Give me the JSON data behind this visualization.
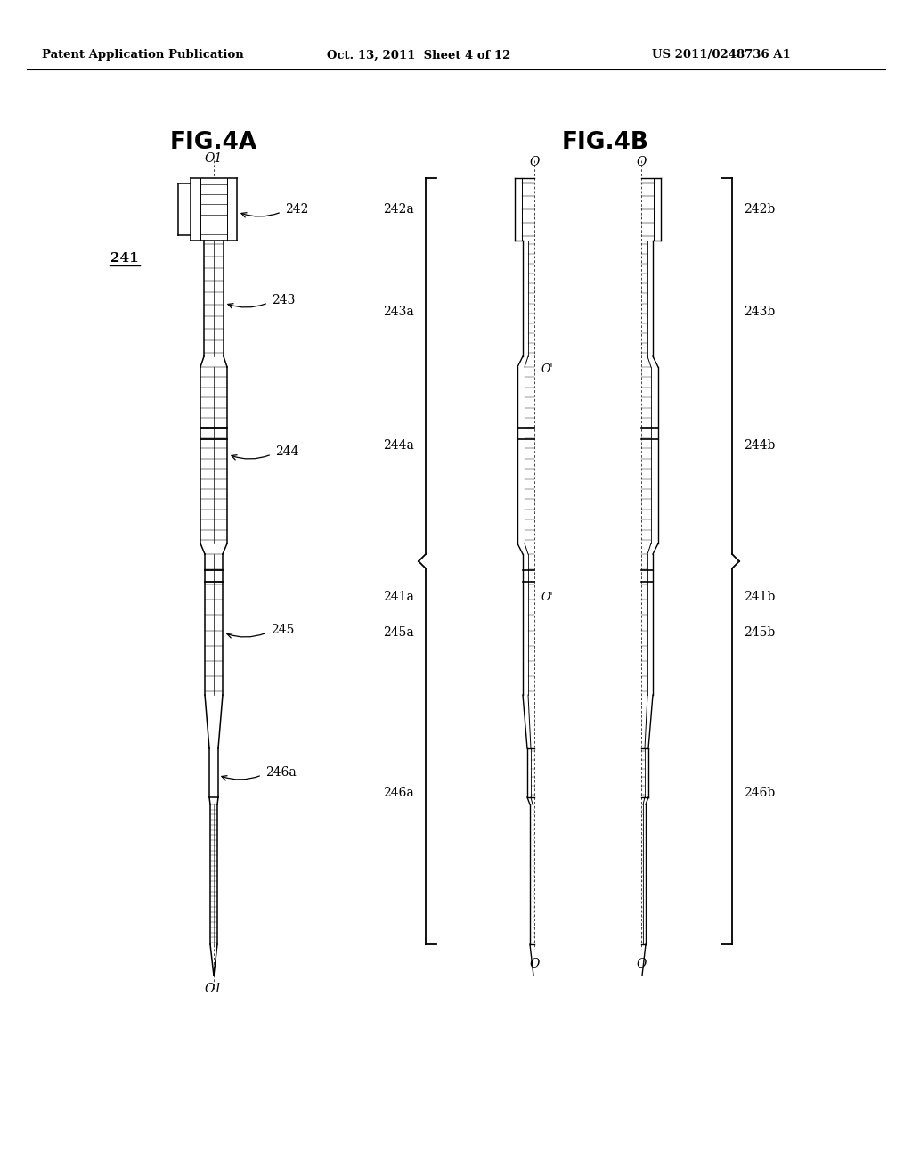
{
  "bg_color": "#ffffff",
  "header_text": "Patent Application Publication",
  "header_date": "Oct. 13, 2011  Sheet 4 of 12",
  "header_patent": "US 2011/0248736 A1",
  "fig4a_title": "FIG.4A",
  "fig4b_title": "FIG.4B",
  "label_241": "241",
  "label_242": "242",
  "label_243": "243",
  "label_244": "244",
  "label_245": "245",
  "label_246a": "246a",
  "label_O1_top": "O1",
  "label_O1_bot": "O1",
  "label_242a": "242a",
  "label_242b": "242b",
  "label_243a": "243a",
  "label_243b": "243b",
  "label_244a": "244a",
  "label_244b": "244b",
  "label_245a": "245a",
  "label_245b": "245b",
  "label_246a_b": "246a",
  "label_246b": "246b",
  "label_241a": "241a",
  "label_241b": "241b",
  "label_O_top_left": "O",
  "label_O_top_right": "O",
  "label_O_bot_left": "O",
  "label_O_bot_right": "O",
  "label_Oprime1": "O'",
  "label_Oprime2": "O'"
}
